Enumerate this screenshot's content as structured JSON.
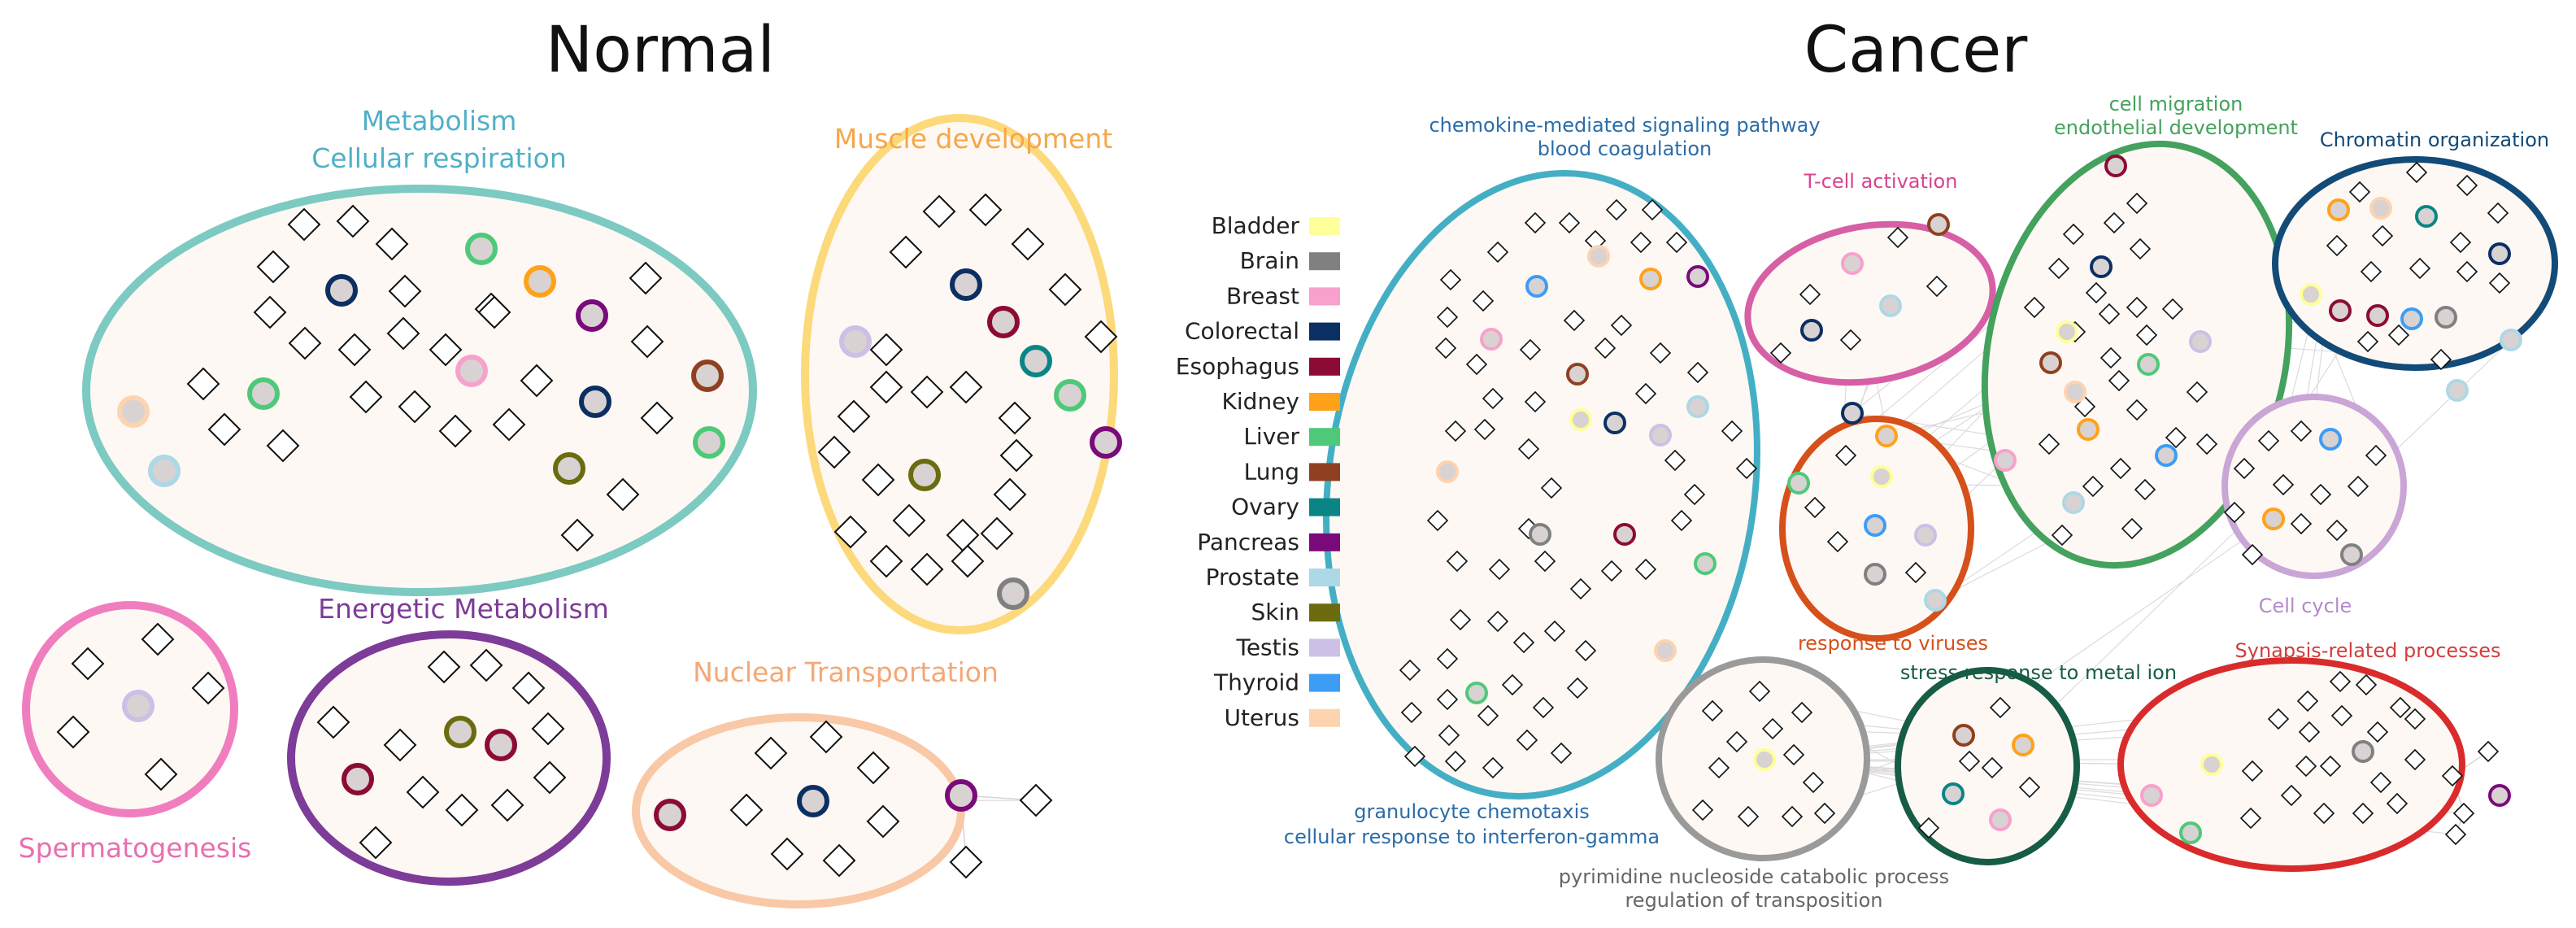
{
  "panels": {
    "normal_title": "Normal",
    "cancer_title": "Cancer"
  },
  "legend": [
    {
      "label": "Bladder",
      "color": "#ffff99"
    },
    {
      "label": "Brain",
      "color": "#808080"
    },
    {
      "label": "Breast",
      "color": "#f7a1cc"
    },
    {
      "label": "Colorectal",
      "color": "#0b2f63"
    },
    {
      "label": "Esophagus",
      "color": "#8c0b35"
    },
    {
      "label": "Kidney",
      "color": "#ffa21a"
    },
    {
      "label": "Liver",
      "color": "#4ec97a"
    },
    {
      "label": "Lung",
      "color": "#8f4020"
    },
    {
      "label": "Ovary",
      "color": "#0a8585"
    },
    {
      "label": "Pancreas",
      "color": "#7a0a7a"
    },
    {
      "label": "Prostate",
      "color": "#add8e6"
    },
    {
      "label": "Skin",
      "color": "#6b6b10"
    },
    {
      "label": "Testis",
      "color": "#cdc0e6"
    },
    {
      "label": "Thyroid",
      "color": "#3d9df5"
    },
    {
      "label": "Uterus",
      "color": "#fdd3b0"
    }
  ],
  "clusters": [
    {
      "lines": [
        "Metabolism",
        "Cellular respiration"
      ],
      "color": "#7ccac2",
      "label_color": "#4fb0c7",
      "nodes": [
        "Uterus",
        "Prostate",
        "Liver",
        "Colorectal",
        "Breast",
        "Liver",
        "Kidney",
        "Pancreas",
        "Colorectal",
        "Skin",
        "Lung",
        "Liver"
      ]
    },
    {
      "lines": [
        "Muscle development"
      ],
      "color": "#fcd97a",
      "label_color": "#f5a74a",
      "nodes": [
        "Colorectal",
        "Testis",
        "Esophagus",
        "Ovary",
        "Liver",
        "Pancreas",
        "Skin",
        "Brain"
      ]
    },
    {
      "lines": [
        "Spermatogenesis"
      ],
      "color": "#f07ebf",
      "label_color": "#e86fb0",
      "nodes": [
        "Testis"
      ]
    },
    {
      "lines": [
        "Energetic Metabolism"
      ],
      "color": "#7d3c98",
      "label_color": "#7d3c98",
      "nodes": [
        "Skin",
        "Esophagus",
        "Esophagus"
      ]
    },
    {
      "lines": [
        "Nuclear Transportation"
      ],
      "color": "#f9c8a6",
      "label_color": "#f5a774",
      "nodes": [
        "Esophagus",
        "Colorectal",
        "Pancreas"
      ]
    },
    {
      "lines": [
        "chemokine-mediated signaling pathway",
        "blood coagulation"
      ],
      "color": "#44afc4",
      "label_color": "#2b6ca8",
      "nodes": [
        "Thyroid",
        "Kidney",
        "Pancreas",
        "Breast",
        "Uterus",
        "Lung",
        "Bladder",
        "Colorectal",
        "Testis",
        "Prostate",
        "Uterus",
        "Brain",
        "Esophagus",
        "Liver",
        "Uterus",
        "Liver"
      ]
    },
    {
      "lines": [
        "granulocyte chemotaxis",
        "cellular response to interferon-gamma"
      ],
      "color": "#44afc4",
      "label_color": "#2b6ca8",
      "nodes": []
    },
    {
      "lines": [
        "T-cell activation"
      ],
      "color": "#d65fa5",
      "label_color": "#d6448f",
      "nodes": [
        "Lung",
        "Breast",
        "Colorectal",
        "Prostate"
      ]
    },
    {
      "lines": [
        "response to viruses"
      ],
      "color": "#d6501b",
      "label_color": "#d6501b",
      "nodes": [
        "Colorectal",
        "Kidney",
        "Liver",
        "Bladder",
        "Thyroid",
        "Testis",
        "Brain",
        "Prostate"
      ]
    },
    {
      "lines": [
        "cell migration",
        "endothelial development"
      ],
      "color": "#44a25e",
      "label_color": "#44a25e",
      "nodes": [
        "Esophagus",
        "Colorectal",
        "Bladder",
        "Lung",
        "Liver",
        "Testis",
        "Uterus",
        "Kidney",
        "Breast",
        "Thyroid",
        "Prostate"
      ]
    },
    {
      "lines": [
        "Chromatin organization"
      ],
      "color": "#124a78",
      "label_color": "#124a78",
      "nodes": [
        "Kidney",
        "Uterus",
        "Ovary",
        "Colorectal",
        "Bladder",
        "Esophagus",
        "Esophagus",
        "Thyroid",
        "Brain",
        "Prostate",
        "Prostate"
      ]
    },
    {
      "lines": [
        "Cell cycle"
      ],
      "color": "#c9a6d6",
      "label_color": "#b48ac9",
      "nodes": [
        "Thyroid",
        "Kidney",
        "Brain"
      ]
    },
    {
      "lines": [
        "stress response to metal ion"
      ],
      "color": "#175c45",
      "label_color": "#175c45",
      "nodes": [
        "Lung",
        "Kidney",
        "Ovary",
        "Breast"
      ]
    },
    {
      "lines": [
        "pyrimidine nucleoside catabolic process",
        "regulation of transposition"
      ],
      "color": "#9a9a9a",
      "label_color": "#666666",
      "nodes": [
        "Bladder"
      ]
    },
    {
      "lines": [
        "Synapsis-related processes"
      ],
      "color": "#d92b2b",
      "label_color": "#d33b3b",
      "nodes": [
        "Bladder",
        "Breast",
        "Liver",
        "Brain",
        "Pancreas"
      ]
    }
  ]
}
